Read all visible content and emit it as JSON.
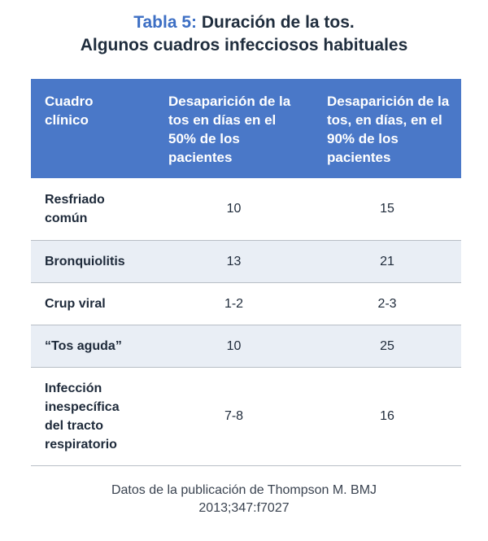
{
  "header": {
    "label": "Tabla 5:",
    "title": "Duración de la tos.",
    "subtitle": "Algunos cuadros infecciosos habituales"
  },
  "table": {
    "columns": [
      "Cuadro clínico",
      "Desaparición de la tos en días en el 50% de los pacientes",
      "Desaparición de la tos, en días, en el 90% de los pacientes"
    ],
    "rows": [
      [
        "Resfriado común",
        "10",
        "15"
      ],
      [
        "Bronquiolitis",
        "13",
        "21"
      ],
      [
        "Crup viral",
        "1-2",
        "2-3"
      ],
      [
        "“Tos aguda”",
        "10",
        "25"
      ],
      [
        "Infección inespecífica del tracto respiratorio",
        "7-8",
        "16"
      ]
    ]
  },
  "footnote": "Datos de la publicación de Thompson M. BMJ 2013;347:f7027"
}
